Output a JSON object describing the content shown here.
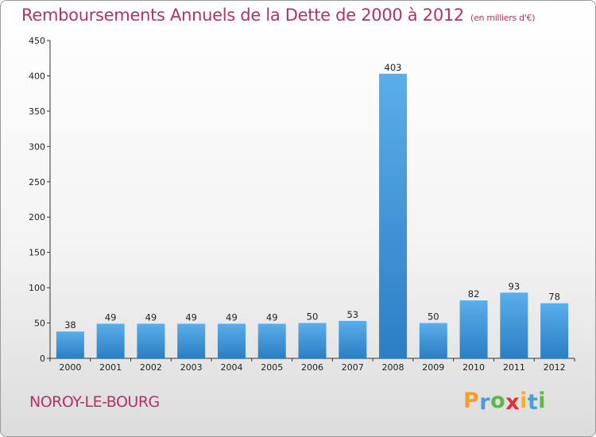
{
  "title": {
    "text": "Remboursements Annuels de la Dette de 2000 à 2012",
    "unit": "(en milliers d'€)"
  },
  "commune": "NOROY-LE-BOURG",
  "logo": {
    "letters": [
      "P",
      "r",
      "o",
      "x",
      "i",
      "t",
      "i"
    ],
    "colors": [
      "#f0a030",
      "#4a9ad8",
      "#58b848",
      "#e03030",
      "#f0b030",
      "#48a0d8",
      "#58b848"
    ]
  },
  "colors": {
    "title": "#b5306a",
    "bar_top": "#5aaeea",
    "bar_bottom": "#2a7ec4",
    "axis": "#333333"
  },
  "chart_data": {
    "type": "bar",
    "categories": [
      "2000",
      "2001",
      "2002",
      "2003",
      "2004",
      "2005",
      "2006",
      "2007",
      "2008",
      "2009",
      "2010",
      "2011",
      "2012"
    ],
    "values": [
      38,
      49,
      49,
      49,
      49,
      49,
      50,
      53,
      403,
      50,
      82,
      93,
      78
    ],
    "title": "Remboursements Annuels de la Dette de 2000 à 2012",
    "xlabel": "",
    "ylabel": "",
    "ylim": [
      0,
      450
    ],
    "yticks": [
      0,
      50,
      100,
      150,
      200,
      250,
      300,
      350,
      400,
      450
    ],
    "grid": false,
    "legend": "none"
  }
}
